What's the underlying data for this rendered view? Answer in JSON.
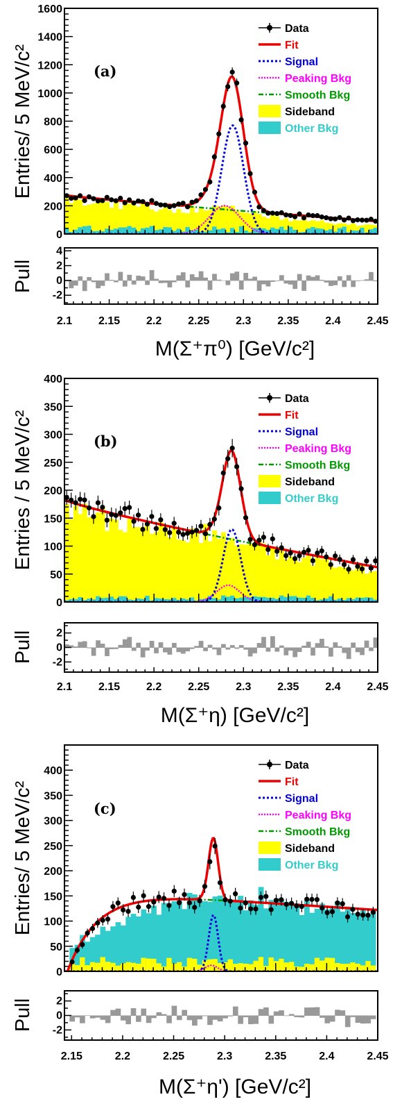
{
  "chart_data": [
    {
      "type": "histogram-fit",
      "label": "(a)",
      "ylabel": "Entries/ 5 MeV/c²",
      "xlabel": "M(Σ⁺π⁰) [GeV/c²]",
      "xlim": [
        2.1,
        2.45
      ],
      "ylim": [
        0,
        1600
      ],
      "xticks": [
        "2.1",
        "2.15",
        "2.2",
        "2.25",
        "2.3",
        "2.35",
        "2.4",
        "2.45"
      ],
      "yticks": [
        "0",
        "200",
        "400",
        "600",
        "800",
        "1000",
        "1200",
        "1400",
        "1600"
      ],
      "pull": {
        "ylabel": "Pull",
        "ylim": [
          -3.2,
          4.4
        ],
        "yticks": [
          "-2",
          "0",
          "2",
          "4"
        ]
      },
      "legend": [
        "Data",
        "Fit",
        "Signal",
        "Peaking Bkg",
        "Smooth Bkg",
        "Sideband",
        "Other Bkg"
      ],
      "signal": {
        "mean": 2.288,
        "sigma": 0.0122,
        "amp": 770
      },
      "peaking": {
        "mean": 2.279,
        "sigma": 0.017,
        "amp": 200
      },
      "smooth": {
        "y0": 275,
        "y1": 90,
        "p": 0.9
      },
      "sideband": {
        "y0": 245,
        "y1": 55,
        "p": 0.9
      },
      "other": {
        "y0": 40,
        "y1": 35,
        "p": 1
      },
      "threshold": null
    },
    {
      "type": "histogram-fit",
      "label": "(b)",
      "ylabel": "Entries / 5 MeV/c²",
      "xlabel": "M(Σ⁺η) [GeV/c²]",
      "xlim": [
        2.1,
        2.45
      ],
      "ylim": [
        0,
        400
      ],
      "xticks": [
        "2.1",
        "2.15",
        "2.2",
        "2.25",
        "2.3",
        "2.35",
        "2.4",
        "2.45"
      ],
      "yticks": [
        "0",
        "50",
        "100",
        "150",
        "200",
        "250",
        "300",
        "350",
        "400"
      ],
      "pull": {
        "ylabel": "Pull",
        "ylim": [
          -3.4,
          3.4
        ],
        "yticks": [
          "-2",
          "0",
          "2"
        ]
      },
      "legend": [
        "Data",
        "Fit",
        "Signal",
        "Peaking Bkg",
        "Smooth Bkg",
        "Sideband",
        "Other Bkg"
      ],
      "signal": {
        "mean": 2.287,
        "sigma": 0.0098,
        "amp": 130
      },
      "peaking": {
        "mean": 2.283,
        "sigma": 0.013,
        "amp": 30
      },
      "smooth": {
        "y0": 183,
        "y1": 62,
        "p": 0.85
      },
      "sideband": {
        "y0": 170,
        "y1": 55,
        "p": 0.85
      },
      "other": {
        "y0": 8,
        "y1": 8,
        "p": 1
      },
      "threshold": null
    },
    {
      "type": "histogram-fit",
      "label": "(c)",
      "ylabel": "Entries/ 5 MeV/c²",
      "xlabel": "M(Σ⁺η') [GeV/c²]",
      "xlim": [
        2.143,
        2.45
      ],
      "ylim": [
        0,
        450
      ],
      "xticks": [
        "2.15",
        "2.2",
        "2.25",
        "2.3",
        "2.35",
        "2.4",
        "2.45"
      ],
      "yticks": [
        "0",
        "50",
        "100",
        "150",
        "200",
        "250",
        "300",
        "350",
        "400"
      ],
      "pull": {
        "ylabel": "Pull",
        "ylim": [
          -3.4,
          3.4
        ],
        "yticks": [
          "-2",
          "0",
          "2"
        ]
      },
      "legend": [
        "Data",
        "Fit",
        "Signal",
        "Peaking Bkg",
        "Smooth Bkg",
        "Sideband",
        "Other Bkg"
      ],
      "signal": {
        "mean": 2.289,
        "sigma": 0.0046,
        "amp": 112
      },
      "peaking": {
        "mean": 2.287,
        "sigma": 0.006,
        "amp": 12
      },
      "smooth": {
        "y0": 162,
        "y1": 122,
        "p": 1
      },
      "sideband": {
        "y0": 22,
        "y1": 22,
        "p": 1
      },
      "other": {
        "y0": 135,
        "y1": 100,
        "p": 1
      },
      "threshold": {
        "x0": 2.146,
        "tau": 0.03,
        "peak": 2.265
      }
    }
  ],
  "colors": {
    "data": "#000000",
    "fit": "#ee0000",
    "signal": "#0000dd",
    "peaking": "#ff00ff",
    "smooth": "#009900",
    "sideband": "#ffff00",
    "other": "#33cccc",
    "pull": "#999999"
  },
  "legend_text_colors": {
    "Data": "#000000",
    "Fit": "#ee0000",
    "Signal": "#0000dd",
    "Peaking Bkg": "#ff00ff",
    "Smooth Bkg": "#009900",
    "Sideband": "#000000",
    "Other Bkg": "#33cccc"
  }
}
